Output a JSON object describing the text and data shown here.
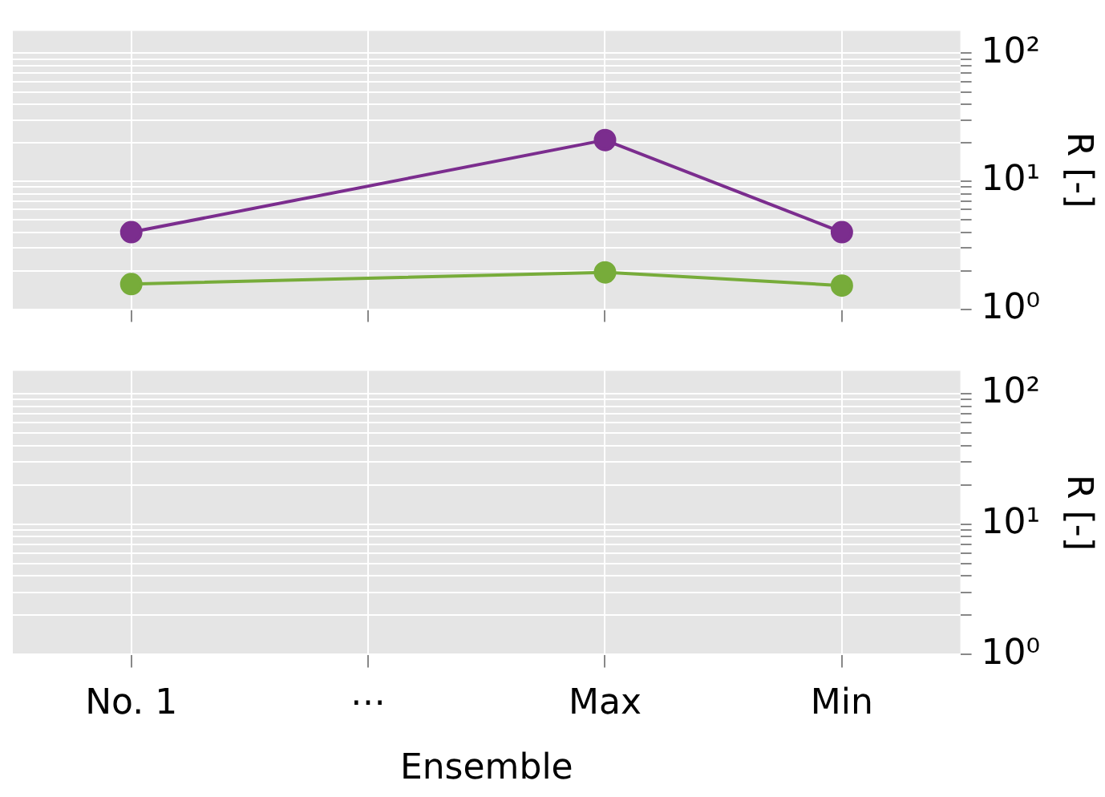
{
  "chart_data": [
    {
      "type": "line",
      "ylabel": "R [-]",
      "categories": [
        null,
        null,
        null,
        null
      ],
      "series": [
        {
          "color": "#7b2d8e",
          "values": [
            4,
            null,
            21,
            4
          ]
        },
        {
          "color": "#77ac3a",
          "values": [
            1.57,
            null,
            1.94,
            1.53
          ]
        }
      ],
      "ylim": [
        1,
        150
      ],
      "yticks": [
        {
          "value": 1,
          "label": "10⁰"
        },
        {
          "value": 2,
          "label": null
        },
        {
          "value": 3,
          "label": null
        },
        {
          "value": 4,
          "label": null
        },
        {
          "value": 5,
          "label": null
        },
        {
          "value": 6,
          "label": null
        },
        {
          "value": 7,
          "label": null
        },
        {
          "value": 8,
          "label": null
        },
        {
          "value": 9,
          "label": null
        },
        {
          "value": 10,
          "label": "10¹"
        },
        {
          "value": 20,
          "label": null
        },
        {
          "value": 30,
          "label": null
        },
        {
          "value": 40,
          "label": null
        },
        {
          "value": 50,
          "label": null
        },
        {
          "value": 60,
          "label": null
        },
        {
          "value": 70,
          "label": null
        },
        {
          "value": 80,
          "label": null
        },
        {
          "value": 90,
          "label": null
        },
        {
          "value": 100,
          "label": "10²"
        }
      ],
      "log": true,
      "grid": true,
      "marker": "circle",
      "line_style": "solid",
      "tick_labels": "y"
    },
    {
      "type": "line",
      "ylabel": "R [-]",
      "xlabel": "Ensemble",
      "categories": [
        "No. 1",
        "⋯",
        "Max",
        "Min"
      ],
      "ylim": [
        1,
        150
      ],
      "yticks": [
        {
          "value": 1,
          "label": "10⁰"
        },
        {
          "value": 2,
          "label": null
        },
        {
          "value": 3,
          "label": null
        },
        {
          "value": 4,
          "label": null
        },
        {
          "value": 5,
          "label": null
        },
        {
          "value": 6,
          "label": null
        },
        {
          "value": 7,
          "label": null
        },
        {
          "value": 8,
          "label": null
        },
        {
          "value": 9,
          "label": null
        },
        {
          "value": 10,
          "label": "10¹"
        },
        {
          "value": 20,
          "label": null
        },
        {
          "value": 30,
          "label": null
        },
        {
          "value": 40,
          "label": null
        },
        {
          "value": 50,
          "label": null
        },
        {
          "value": 60,
          "label": null
        },
        {
          "value": 70,
          "label": null
        },
        {
          "value": 80,
          "label": null
        },
        {
          "value": 90,
          "label": null
        },
        {
          "value": 100,
          "label": "10²"
        }
      ],
      "log": true,
      "grid": true
    }
  ]
}
